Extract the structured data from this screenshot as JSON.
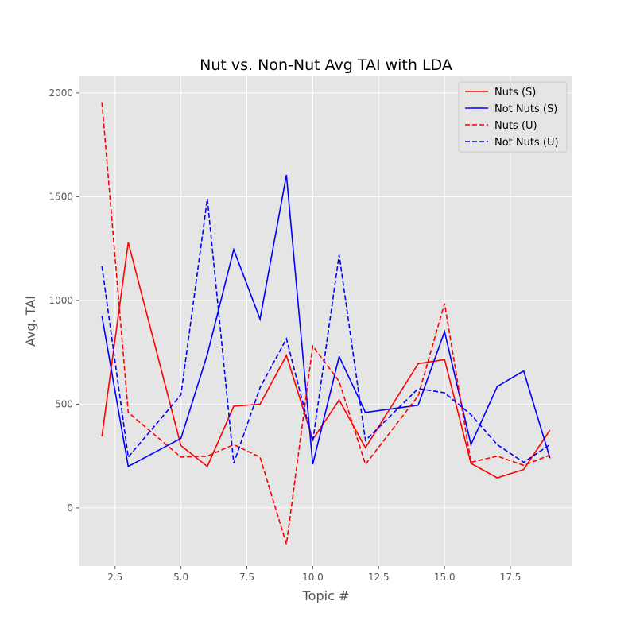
{
  "chart_data": {
    "type": "line",
    "title": "Nut vs. Non-Nut Avg TAI with LDA",
    "xlabel": "Topic #",
    "ylabel": "Avg. TAI",
    "xlim": [
      1.15,
      19.85
    ],
    "ylim": [
      -280,
      2080
    ],
    "xticks": [
      2.5,
      5.0,
      7.5,
      10.0,
      12.5,
      15.0,
      17.5
    ],
    "xtick_labels": [
      "2.5",
      "5.0",
      "7.5",
      "10.0",
      "12.5",
      "15.0",
      "17.5"
    ],
    "yticks": [
      0,
      500,
      1000,
      1500,
      2000
    ],
    "ytick_labels": [
      "0",
      "500",
      "1000",
      "1500",
      "2000"
    ],
    "grid": true,
    "legend_position": "top-right",
    "series": [
      {
        "name": "Nuts (S)",
        "color": "#ff0000",
        "dash": "solid",
        "x": [
          2,
          3,
          5,
          6,
          7,
          8,
          9,
          10,
          11,
          12,
          14,
          15,
          16,
          17,
          18,
          19
        ],
        "y": [
          345,
          1280,
          300,
          200,
          490,
          500,
          735,
          330,
          520,
          290,
          695,
          715,
          215,
          145,
          185,
          375
        ]
      },
      {
        "name": "Not Nuts (S)",
        "color": "#0000ff",
        "dash": "solid",
        "x": [
          2,
          3,
          5,
          6,
          7,
          8,
          9,
          10,
          11,
          12,
          14,
          15,
          16,
          17,
          18,
          19
        ],
        "y": [
          925,
          200,
          335,
          740,
          1245,
          910,
          1605,
          210,
          730,
          460,
          495,
          850,
          305,
          585,
          660,
          240
        ]
      },
      {
        "name": "Nuts (U)",
        "color": "#ff0000",
        "dash": "dashed",
        "x": [
          2,
          3,
          5,
          6,
          7,
          8,
          9,
          10,
          11,
          12,
          14,
          15,
          16,
          17,
          18,
          19
        ],
        "y": [
          1955,
          460,
          245,
          250,
          305,
          245,
          -175,
          780,
          610,
          210,
          540,
          985,
          220,
          250,
          205,
          255
        ]
      },
      {
        "name": "Not Nuts (U)",
        "color": "#0000ff",
        "dash": "dashed",
        "x": [
          2,
          3,
          5,
          6,
          7,
          8,
          9,
          10,
          11,
          12,
          14,
          15,
          16,
          17,
          18,
          19
        ],
        "y": [
          1165,
          245,
          545,
          1490,
          215,
          580,
          815,
          320,
          1220,
          325,
          575,
          555,
          450,
          305,
          220,
          305
        ]
      }
    ]
  }
}
